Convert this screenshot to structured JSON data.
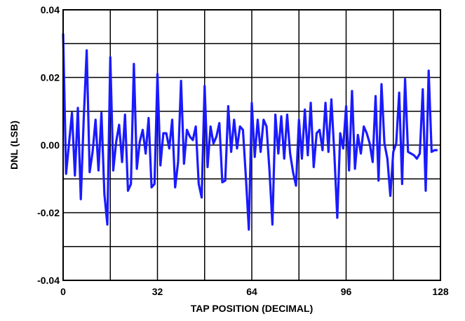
{
  "chart_data": {
    "type": "line",
    "title": "",
    "xlabel": "TAP POSITION (DECIMAL)",
    "ylabel": "DNL (LSB)",
    "xlim": [
      0,
      128
    ],
    "ylim": [
      -0.04,
      0.04
    ],
    "xticks": [
      0,
      32,
      64,
      96,
      128
    ],
    "xtick_labels": [
      "0",
      "32",
      "64",
      "96",
      "128"
    ],
    "yticks": [
      -0.04,
      -0.02,
      0.0,
      0.02,
      0.04
    ],
    "ytick_labels": [
      "-0.04",
      "-0.02",
      "0.00",
      "0.02",
      "0.04"
    ],
    "grid": true,
    "legend": "none",
    "series": [
      {
        "color": "#1a1aff",
        "x": [
          0,
          1,
          2,
          3,
          4,
          5,
          6,
          7,
          8,
          9,
          10,
          11,
          12,
          13,
          14,
          15,
          16,
          17,
          18,
          19,
          20,
          21,
          22,
          23,
          24,
          25,
          26,
          27,
          28,
          29,
          30,
          31,
          32,
          33,
          34,
          35,
          36,
          37,
          38,
          39,
          40,
          41,
          42,
          43,
          44,
          45,
          46,
          47,
          48,
          49,
          50,
          51,
          52,
          53,
          54,
          55,
          56,
          57,
          58,
          59,
          60,
          61,
          62,
          63,
          64,
          65,
          66,
          67,
          68,
          69,
          70,
          71,
          72,
          73,
          74,
          75,
          76,
          77,
          78,
          79,
          80,
          81,
          82,
          83,
          84,
          85,
          86,
          87,
          88,
          89,
          90,
          91,
          92,
          93,
          94,
          95,
          96,
          97,
          98,
          99,
          100,
          101,
          102,
          103,
          104,
          105,
          106,
          107,
          108,
          109,
          110,
          111,
          112,
          113,
          114,
          115,
          116,
          117,
          118,
          119,
          120,
          121,
          122,
          123,
          124,
          125,
          126,
          127
        ],
        "y": [
          0.033,
          -0.0085,
          0.0005,
          0.0095,
          -0.009,
          0.011,
          -0.016,
          0.008,
          0.028,
          -0.008,
          -0.002,
          0.0075,
          -0.0075,
          0.0095,
          -0.0145,
          -0.0235,
          0.026,
          -0.0075,
          0.001,
          0.006,
          -0.005,
          0.009,
          -0.0135,
          -0.0115,
          0.024,
          -0.007,
          0.001,
          0.0045,
          -0.0025,
          0.008,
          -0.0125,
          -0.0115,
          0.021,
          -0.006,
          0.0035,
          0.0035,
          -0.001,
          0.0075,
          -0.0125,
          -0.005,
          0.019,
          -0.0055,
          0.0045,
          0.0025,
          0.0015,
          0.0055,
          -0.0115,
          -0.0155,
          0.0175,
          -0.0065,
          0.0055,
          0.0005,
          0.0025,
          0.0065,
          -0.011,
          -0.0105,
          0.0115,
          -0.002,
          0.0075,
          -0.001,
          0.0055,
          0.0045,
          -0.0095,
          -0.025,
          0.0125,
          -0.0035,
          0.0075,
          -0.002,
          0.0075,
          0.0055,
          -0.0075,
          -0.0235,
          0.009,
          -0.0025,
          0.0085,
          -0.004,
          0.009,
          -0.0025,
          -0.008,
          -0.012,
          0.0075,
          -0.004,
          0.0105,
          -0.003,
          0.0125,
          -0.0065,
          0.0035,
          0.0045,
          -0.0015,
          0.0125,
          -0.002,
          0.0135,
          -0.0025,
          -0.0215,
          0.0035,
          -0.001,
          0.0115,
          -0.0075,
          0.016,
          -0.007,
          0.003,
          -0.0025,
          0.0055,
          0.0035,
          0.0005,
          -0.005,
          0.0145,
          -0.0105,
          0.018,
          0.0005,
          -0.004,
          -0.015,
          -0.002,
          0.0005,
          0.0155,
          -0.0115,
          0.0195,
          -0.002,
          -0.0025,
          -0.003,
          -0.004,
          -0.0025,
          0.0165,
          -0.0135,
          0.022,
          -0.002,
          -0.0015,
          -0.0015
        ]
      }
    ]
  }
}
